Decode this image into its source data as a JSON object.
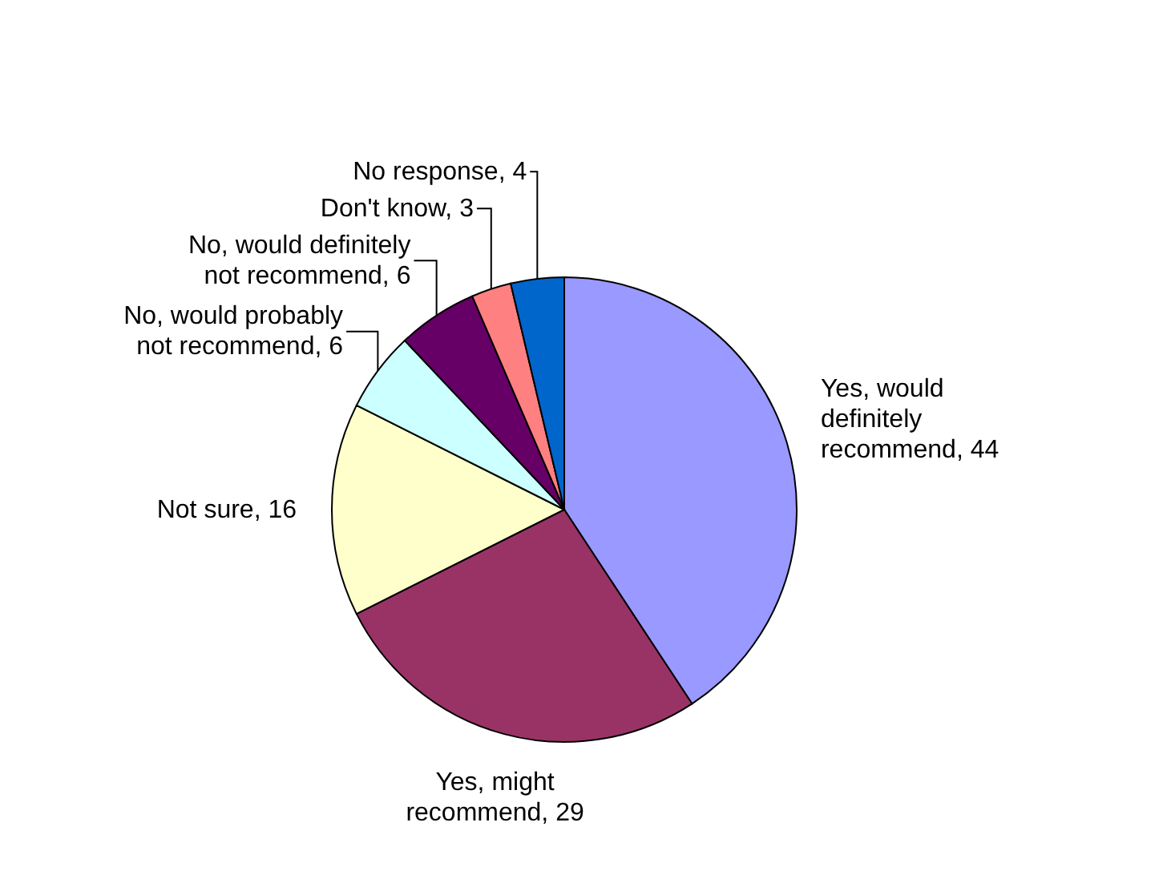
{
  "chart_data": {
    "type": "pie",
    "categories": [
      "Yes, would definitely recommend",
      "Yes, might recommend",
      "Not sure",
      "No, would probably not recommend",
      "No, would definitely not recommend",
      "Don't know",
      "No response"
    ],
    "values": [
      44,
      29,
      16,
      6,
      6,
      3,
      4
    ],
    "value_labels": [
      ", 44",
      ", 29",
      ", 16",
      ", 6",
      ", 6",
      ", 3",
      ", 4"
    ],
    "colors": [
      "#9999ff",
      "#993366",
      "#ffffcc",
      "#ccffff",
      "#660066",
      "#ff8080",
      "#0066cc"
    ]
  }
}
